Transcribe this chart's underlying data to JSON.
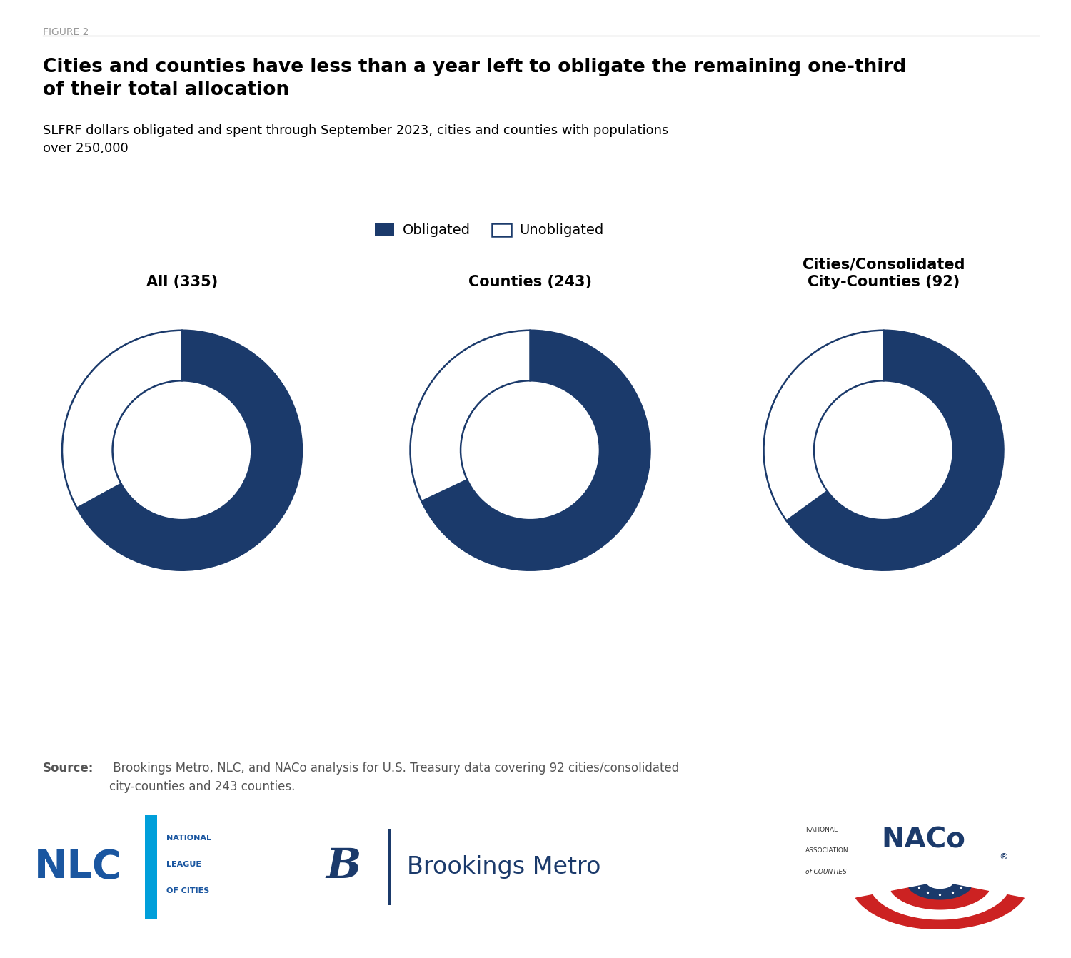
{
  "figure_label": "FIGURE 2",
  "title": "Cities and counties have less than a year left to obligate the remaining one-third\nof their total allocation",
  "subtitle": "SLFRF dollars obligated and spent through September 2023, cities and counties with populations\nover 250,000",
  "legend_labels": [
    "Obligated",
    "Unobligated"
  ],
  "obligated_color": "#1B3A6B",
  "unobligated_color": "#FFFFFF",
  "donut_edge_color": "#1B3A6B",
  "charts": [
    {
      "label": "All (335)",
      "obligated": 67.0,
      "unobligated": 33.0
    },
    {
      "label": "Counties (243)",
      "obligated": 68.0,
      "unobligated": 32.0
    },
    {
      "label": "Cities/Consolidated\nCity-Counties (92)",
      "obligated": 65.0,
      "unobligated": 35.0
    }
  ],
  "source_bold": "Source:",
  "source_text": " Brookings Metro, NLC, and NACo analysis for U.S. Treasury data covering 92 cities/consolidated\ncity-counties and 243 counties.",
  "background_color": "#FFFFFF",
  "text_color": "#000000",
  "figure_label_color": "#999999",
  "source_color": "#555555",
  "title_fontsize": 19,
  "subtitle_fontsize": 13,
  "chart_label_fontsize": 15,
  "legend_fontsize": 14,
  "source_fontsize": 12,
  "figure_label_fontsize": 10
}
